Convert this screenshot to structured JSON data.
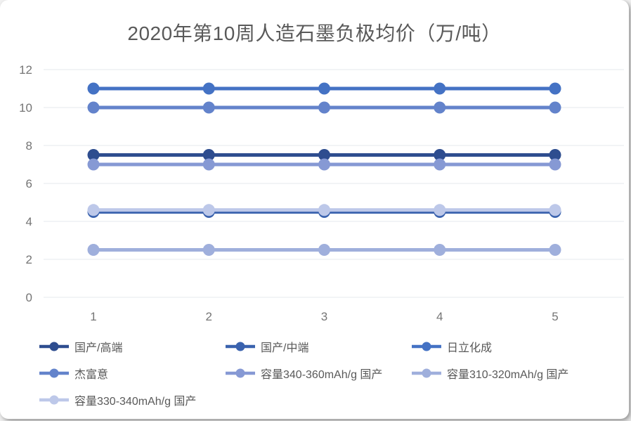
{
  "title": "2020年第10周人造石墨负极均价（万/吨）",
  "chart_data": {
    "type": "line",
    "title": "2020年第10周人造石墨负极均价（万/吨）",
    "x": [
      "1",
      "2",
      "3",
      "4",
      "5"
    ],
    "xlabel": "",
    "ylabel": "",
    "ylim": [
      0,
      12
    ],
    "y_ticks": [
      0,
      2,
      4,
      6,
      8,
      10,
      12
    ],
    "grid": true,
    "legend_position": "bottom",
    "marker": "circle",
    "series": [
      {
        "name": "国产/高端",
        "color": "#2E4D8F",
        "values": [
          7.5,
          7.5,
          7.5,
          7.5,
          7.5
        ]
      },
      {
        "name": "国产/中端",
        "color": "#3A62AE",
        "values": [
          4.5,
          4.5,
          4.5,
          4.5,
          4.5
        ]
      },
      {
        "name": "日立化成",
        "color": "#4472C4",
        "values": [
          11,
          11,
          11,
          11,
          11
        ]
      },
      {
        "name": "杰富意",
        "color": "#6383CB",
        "values": [
          10,
          10,
          10,
          10,
          10
        ]
      },
      {
        "name": "容量340-360mAh/g 国产",
        "color": "#8699D4",
        "values": [
          7,
          7,
          7,
          7,
          7
        ]
      },
      {
        "name": "容量310-320mAh/g 国产",
        "color": "#9FAFDC",
        "values": [
          2.5,
          2.5,
          2.5,
          2.5,
          2.5
        ]
      },
      {
        "name": "容量330-340mAh/g 国产",
        "color": "#BDC8E9",
        "values": [
          4.6,
          4.6,
          4.6,
          4.6,
          4.6
        ]
      }
    ]
  }
}
